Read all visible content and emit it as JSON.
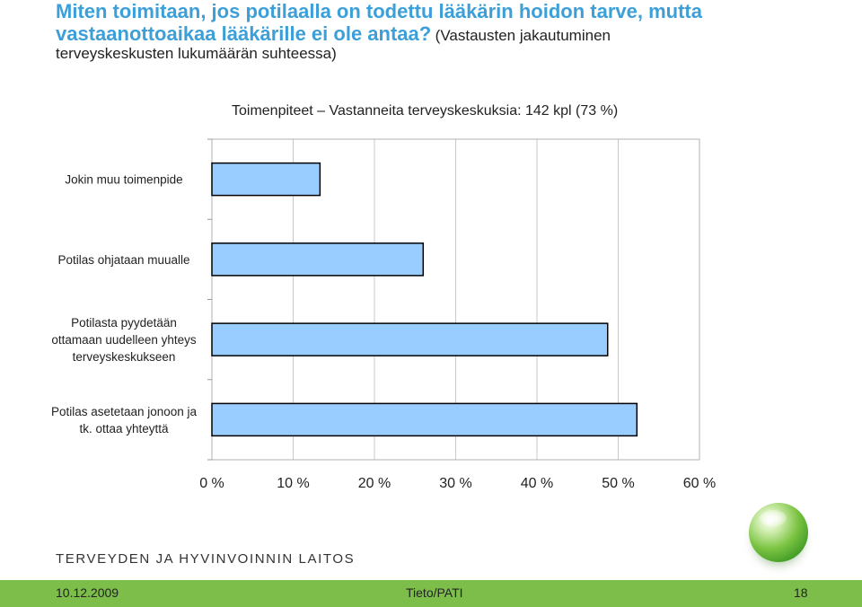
{
  "header": {
    "title_bold": "Miten toimitaan, jos potilaalla on todettu lääkärin hoidon tarve, mutta vastaanottoaikaa lääkärille ei ole antaa?",
    "title_note": "(Vastausten jakautuminen",
    "title_note2": "terveyskeskusten lukumäärän suhteessa)"
  },
  "chart_data": {
    "type": "bar",
    "orientation": "horizontal",
    "title": "Toimenpiteet – Vastanneita terveyskeskuksia: 142 kpl (73 %)",
    "categories": [
      "Jokin muu toimenpide",
      "Potilas ohjataan muualle",
      "Potilasta pyydetään ottamaan uudelleen yhteys terveyskeskukseen",
      "Potilas asetetaan jonoon ja tk. ottaa yhteyttä"
    ],
    "category_lines": [
      [
        "Jokin muu toimenpide"
      ],
      [
        "Potilas ohjataan muualle"
      ],
      [
        "Potilasta pyydetään",
        "ottamaan uudelleen yhteys",
        "terveyskeskukseen"
      ],
      [
        "Potilas asetetaan jonoon ja",
        "tk. ottaa yhteyttä"
      ]
    ],
    "values": [
      13.3,
      26.0,
      48.7,
      52.3
    ],
    "xlim": [
      0,
      60
    ],
    "xticks": [
      "0 %",
      "10 %",
      "20 %",
      "30 %",
      "40 %",
      "50 %",
      "60 %"
    ],
    "grid": true,
    "bar_color": "#99ccff"
  },
  "footer": {
    "org": "TERVEYDEN JA HYVINVOINNIN LAITOS",
    "date": "10.12.2009",
    "center": "Tieto/PATI",
    "page": "18"
  }
}
